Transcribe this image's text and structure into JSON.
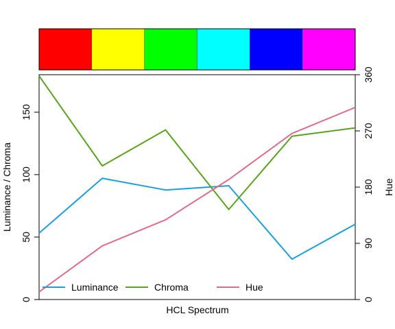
{
  "chart_data": {
    "type": "line",
    "xlabel": "HCL Spectrum",
    "ylabel_left": "Luminance / Chroma",
    "ylabel_right": "Hue",
    "x": [
      1,
      2,
      3,
      4,
      5,
      6
    ],
    "ylim_left": [
      0,
      180
    ],
    "ylim_right": [
      0,
      360
    ],
    "yticks_left": [
      0,
      50,
      100,
      150
    ],
    "yticks_right": [
      0,
      90,
      180,
      270,
      360
    ],
    "swatches": [
      "#FF0000",
      "#FFFF00",
      "#00FF00",
      "#00FFFF",
      "#0000FF",
      "#FF00FF"
    ],
    "series": [
      {
        "name": "Luminance",
        "axis": "left",
        "color": "#1B9EDB",
        "values": [
          53.2,
          97.1,
          87.7,
          91.1,
          32.3,
          60.3
        ]
      },
      {
        "name": "Chroma",
        "axis": "left",
        "color": "#5AA21C",
        "values": [
          179.0,
          107.0,
          135.8,
          72.1,
          130.7,
          137.4
        ]
      },
      {
        "name": "Hue",
        "axis": "right",
        "color": "#DB6D88",
        "values": [
          12.2,
          85.9,
          127.7,
          192.2,
          265.9,
          307.7
        ]
      }
    ],
    "legend_position": "bottom"
  }
}
